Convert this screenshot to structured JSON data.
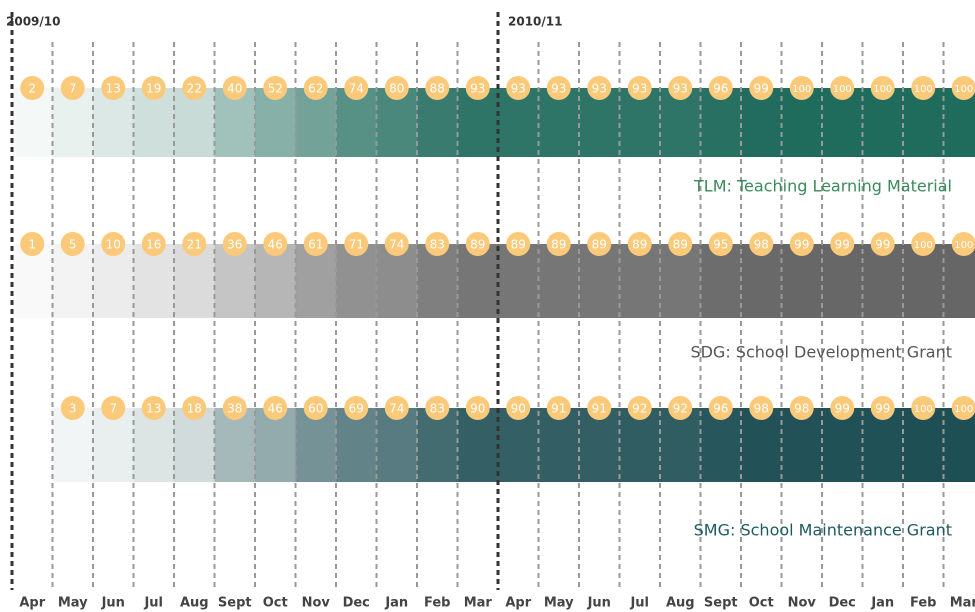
{
  "chart_data": {
    "type": "band",
    "periods": [
      "2009/10",
      "2010/11"
    ],
    "categories": [
      "Apr",
      "May",
      "Jun",
      "Jul",
      "Aug",
      "Sept",
      "Oct",
      "Nov",
      "Dec",
      "Jan",
      "Feb",
      "Mar",
      "Apr",
      "May",
      "Jun",
      "Jul",
      "Aug",
      "Sept",
      "Oct",
      "Nov",
      "Dec",
      "Jan",
      "Feb",
      "Mar"
    ],
    "ylim": [
      0,
      100
    ],
    "marker_color": "#fbc97a",
    "series": [
      {
        "name": "TLM: Teaching Learning Material",
        "color": "#1f6b5c",
        "label_color": "#3a8a5a",
        "values": [
          2,
          7,
          13,
          19,
          22,
          40,
          52,
          62,
          74,
          80,
          88,
          93,
          93,
          93,
          93,
          93,
          93,
          96,
          99,
          100,
          100,
          100,
          100,
          100
        ]
      },
      {
        "name": "SDG: School Development Grant",
        "color": "#666666",
        "label_color": "#555555",
        "values": [
          1,
          5,
          10,
          16,
          21,
          36,
          46,
          61,
          71,
          74,
          83,
          89,
          89,
          89,
          89,
          89,
          89,
          95,
          98,
          99,
          99,
          99,
          100,
          100
        ]
      },
      {
        "name": "SMG: School  Maintenance Grant",
        "color": "#1e4f55",
        "label_color": "#1e5a5e",
        "values": [
          null,
          3,
          7,
          13,
          18,
          38,
          46,
          60,
          69,
          74,
          83,
          90,
          90,
          91,
          91,
          92,
          92,
          96,
          98,
          98,
          99,
          99,
          100,
          100
        ]
      }
    ]
  }
}
